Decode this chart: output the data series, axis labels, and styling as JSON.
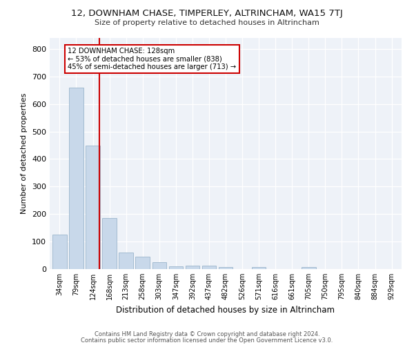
{
  "title": "12, DOWNHAM CHASE, TIMPERLEY, ALTRINCHAM, WA15 7TJ",
  "subtitle": "Size of property relative to detached houses in Altrincham",
  "xlabel": "Distribution of detached houses by size in Altrincham",
  "ylabel": "Number of detached properties",
  "bar_color": "#c8d8ea",
  "bar_edge_color": "#9ab5cc",
  "categories": [
    "34sqm",
    "79sqm",
    "124sqm",
    "168sqm",
    "213sqm",
    "258sqm",
    "303sqm",
    "347sqm",
    "392sqm",
    "437sqm",
    "482sqm",
    "526sqm",
    "571sqm",
    "616sqm",
    "661sqm",
    "705sqm",
    "750sqm",
    "795sqm",
    "840sqm",
    "884sqm",
    "929sqm"
  ],
  "values": [
    125,
    660,
    450,
    185,
    60,
    45,
    25,
    10,
    12,
    12,
    7,
    0,
    7,
    0,
    0,
    7,
    0,
    0,
    0,
    0,
    0
  ],
  "ylim": [
    0,
    840
  ],
  "yticks": [
    0,
    100,
    200,
    300,
    400,
    500,
    600,
    700,
    800
  ],
  "property_line_index": 2,
  "annotation_line1": "12 DOWNHAM CHASE: 128sqm",
  "annotation_line2": "← 53% of detached houses are smaller (838)",
  "annotation_line3": "45% of semi-detached houses are larger (713) →",
  "annotation_box_color": "#cc0000",
  "background_color": "#eef2f8",
  "footer_line1": "Contains HM Land Registry data © Crown copyright and database right 2024.",
  "footer_line2": "Contains public sector information licensed under the Open Government Licence v3.0."
}
